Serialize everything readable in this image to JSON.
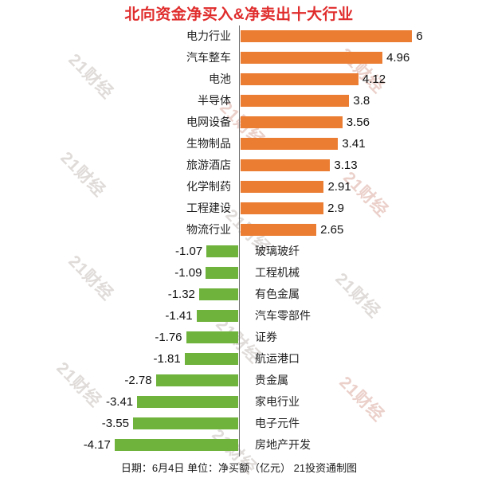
{
  "title": {
    "text": "北向资金净买入&净卖出十大行业",
    "color": "#e02c2c"
  },
  "footer": {
    "text": "日期：6月4日 单位：净买额（亿元） 21投资通制图"
  },
  "watermark": {
    "text": "21财经",
    "gray_color": "#dfdbd9",
    "pink_color": "#ebd0ca"
  },
  "chart_data": {
    "type": "bar",
    "orientation": "horizontal-diverging",
    "title": "北向资金净买入&净卖出十大行业",
    "date_label": "日期：6月4日",
    "unit_label": "单位：净买额（亿元）",
    "source_label": "21投资通制图",
    "positive_color": "#eb7d33",
    "negative_color": "#6fb23c",
    "axis_color": "#6e6e6e",
    "xlim": [
      -4.5,
      6
    ],
    "grid": false,
    "legend": false,
    "categories": [
      "电力行业",
      "汽车整车",
      "电池",
      "半导体",
      "电网设备",
      "生物制品",
      "旅游酒店",
      "化学制药",
      "工程建设",
      "物流行业",
      "玻璃玻纤",
      "工程机械",
      "有色金属",
      "汽车零部件",
      "证券",
      "航运港口",
      "贵金属",
      "家电行业",
      "电子元件",
      "房地产开发"
    ],
    "values": [
      6,
      4.96,
      4.12,
      3.8,
      3.56,
      3.41,
      3.13,
      2.91,
      2.9,
      2.65,
      -1.07,
      -1.09,
      -1.32,
      -1.41,
      -1.76,
      -1.81,
      -2.78,
      -3.41,
      -3.55,
      -4.17
    ]
  }
}
